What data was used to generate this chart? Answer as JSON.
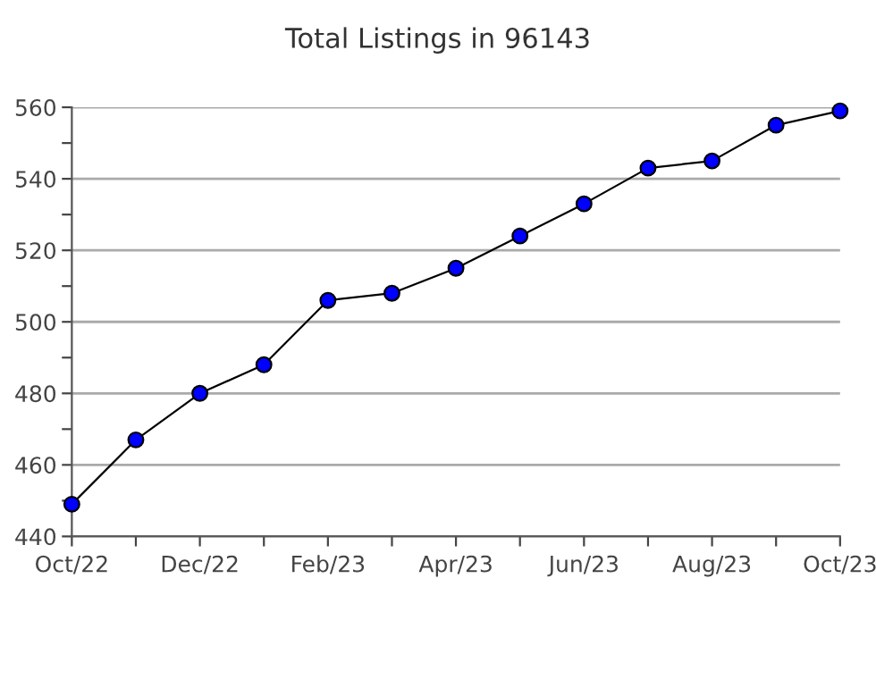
{
  "chart_data": {
    "type": "line",
    "title": "Total Listings in 96143",
    "categories": [
      "Oct/22",
      null,
      "Dec/22",
      null,
      "Feb/23",
      null,
      "Apr/23",
      null,
      "Jun/23",
      null,
      "Aug/23",
      null,
      "Oct/23"
    ],
    "series": [
      {
        "color": "#0000ff",
        "values": [
          449,
          467,
          480,
          488,
          506,
          508,
          515,
          524,
          533,
          543,
          545,
          555,
          559
        ]
      }
    ],
    "ylim": [
      440,
      560
    ],
    "yticks": [
      440,
      {
        "value": 450,
        "label": null
      },
      460,
      {
        "value": 470,
        "label": null
      },
      480,
      {
        "value": 490,
        "label": null
      },
      500,
      {
        "value": 510,
        "label": null
      },
      520,
      {
        "value": 530,
        "label": null
      },
      540,
      {
        "value": 550,
        "label": null
      },
      560
    ],
    "grid": "y",
    "marker": "circle",
    "line_style": "solid",
    "legend": false
  }
}
